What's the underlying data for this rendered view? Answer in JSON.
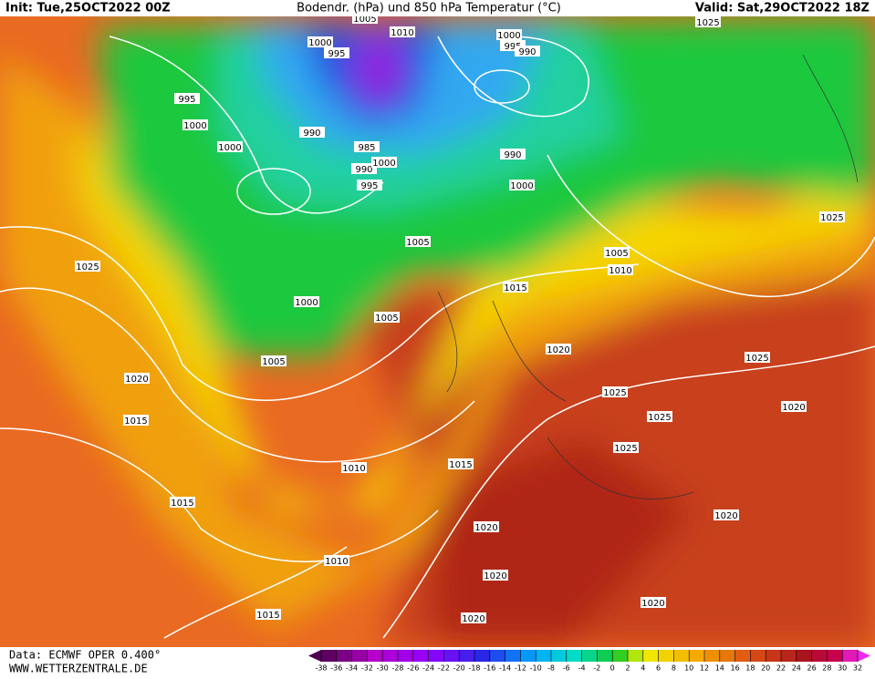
{
  "header": {
    "init": "Init: Tue,25OCT2022 00Z",
    "title": "Bodendr. (hPa) und 850 hPa Temperatur (°C)",
    "valid": "Valid: Sat,29OCT2022 18Z"
  },
  "footer": {
    "data": "Data: ECMWF OPER 0.400°",
    "site": "WWW.WETTERZENTRALE.DE"
  },
  "colorbar": {
    "ticks": [
      -38,
      -36,
      -34,
      -32,
      -30,
      -28,
      -26,
      -24,
      -22,
      -20,
      -18,
      -16,
      -14,
      -12,
      -10,
      -8,
      -6,
      -4,
      -2,
      0,
      2,
      4,
      6,
      8,
      10,
      12,
      14,
      16,
      18,
      20,
      22,
      24,
      26,
      28,
      30,
      32
    ]
  },
  "isobar_labels": [
    "1005",
    "1000",
    "995",
    "1010",
    "1000",
    "995",
    "990",
    "995",
    "1000",
    "1000",
    "990",
    "985",
    "990",
    "1000",
    "995",
    "990",
    "1000",
    "1005",
    "1025",
    "1000",
    "1005",
    "1015",
    "1005",
    "1010",
    "1025",
    "1025",
    "1020",
    "1025",
    "1020",
    "1015",
    "1005",
    "1025",
    "1025",
    "1020",
    "1025",
    "1010",
    "1015",
    "1015",
    "1020",
    "1020",
    "1010",
    "1020",
    "1015",
    "1020",
    "1020"
  ]
}
